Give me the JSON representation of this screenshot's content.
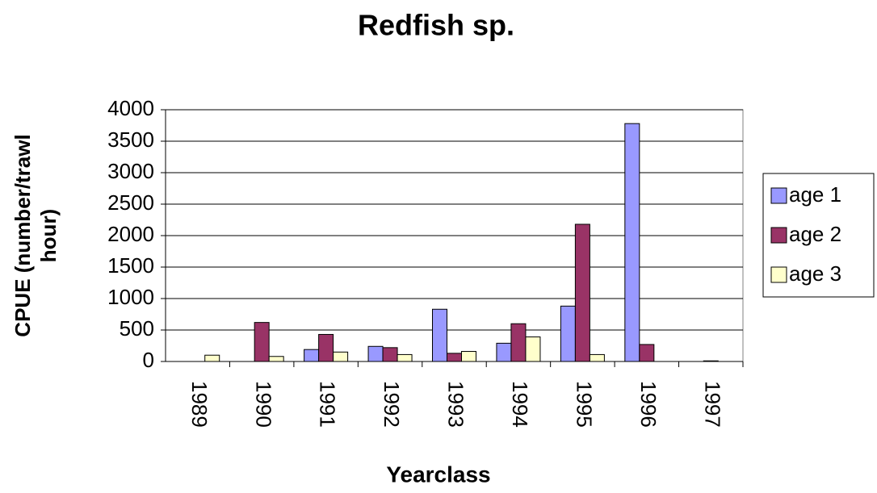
{
  "chart_data": {
    "type": "bar",
    "title": "Redfish sp.",
    "x_label": "Yearclass",
    "y_label": "CPUE (number/trawl hour)",
    "categories": [
      "1989",
      "1990",
      "1991",
      "1992",
      "1993",
      "1994",
      "1995",
      "1996",
      "1997"
    ],
    "series": [
      {
        "name": "age 1",
        "color": "#9999ff",
        "values": [
          0,
          0,
          190,
          240,
          830,
          290,
          880,
          3780,
          0
        ]
      },
      {
        "name": "age 2",
        "color": "#993366",
        "values": [
          0,
          620,
          430,
          220,
          130,
          600,
          2180,
          270,
          10
        ]
      },
      {
        "name": "age 3",
        "color": "#ffffcc",
        "values": [
          100,
          80,
          150,
          110,
          160,
          390,
          110,
          0,
          0
        ]
      }
    ],
    "ylim": [
      0,
      4000
    ],
    "yticks": [
      0,
      500,
      1000,
      1500,
      2000,
      2500,
      3000,
      3500,
      4000
    ],
    "grid": true,
    "legend": "right"
  }
}
